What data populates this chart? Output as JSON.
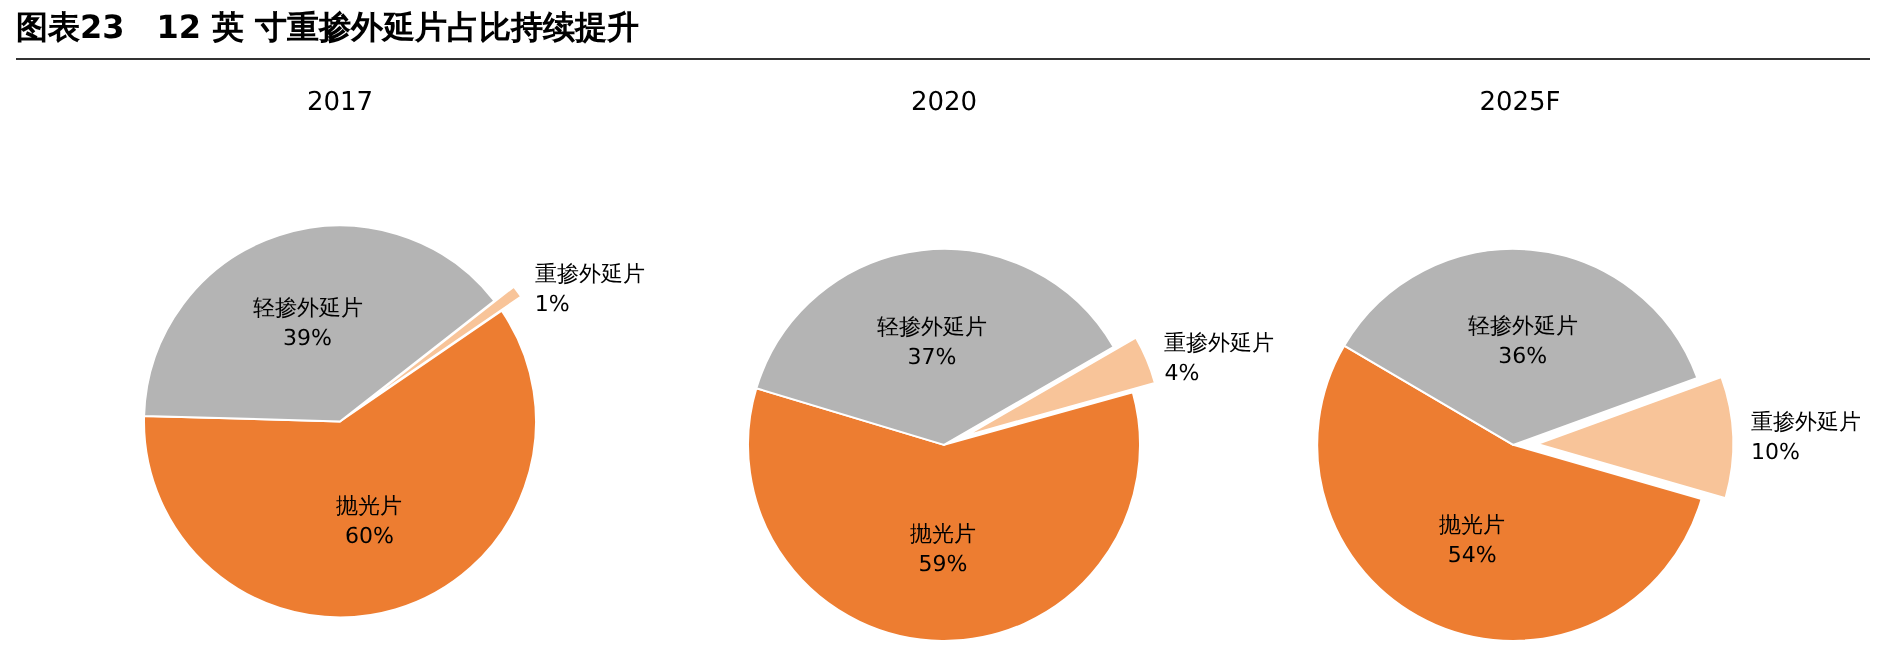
{
  "chart_data": [
    {
      "type": "pie",
      "title": "2017",
      "annotations": [
        "图表23　12 英 寸重掺外延片占比持续提升"
      ],
      "categories": [
        "重掺外延片",
        "抛光片",
        "轻掺外延片"
      ],
      "values": [
        1,
        60,
        39
      ],
      "colors": [
        "#f8c499",
        "#ed7d31",
        "#b4b4b4"
      ],
      "value_labels": [
        "1%",
        "60%",
        "39%"
      ]
    },
    {
      "type": "pie",
      "title": "2020",
      "categories": [
        "重掺外延片",
        "抛光片",
        "轻掺外延片"
      ],
      "values": [
        4,
        59,
        37
      ],
      "colors": [
        "#f8c499",
        "#ed7d31",
        "#b4b4b4"
      ],
      "value_labels": [
        "4%",
        "59%",
        "37%"
      ]
    },
    {
      "type": "pie",
      "title": "2025F",
      "categories": [
        "重掺外延片",
        "抛光片",
        "轻掺外延片"
      ],
      "values": [
        10,
        54,
        36
      ],
      "colors": [
        "#f8c499",
        "#ed7d31",
        "#b4b4b4"
      ],
      "value_labels": [
        "10%",
        "54%",
        "36%"
      ]
    }
  ]
}
